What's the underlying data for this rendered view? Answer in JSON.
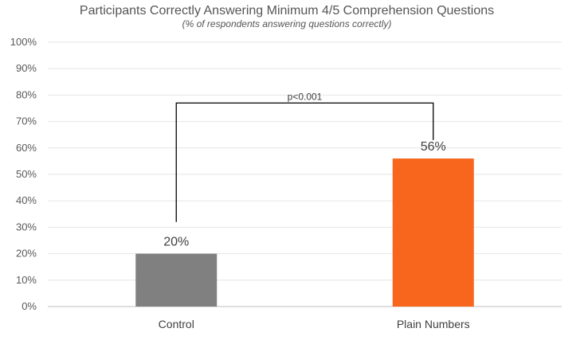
{
  "chart_data": {
    "type": "bar",
    "title": "Participants Correctly Answering Minimum 4/5 Comprehension Questions",
    "subtitle": "(% of respondents answering questions correctly)",
    "categories": [
      "Control",
      "Plain Numbers"
    ],
    "values": [
      20,
      56
    ],
    "data_labels": [
      "20%",
      "56%"
    ],
    "bar_colors": [
      "#808080",
      "#f7661c"
    ],
    "ylim": [
      0,
      100
    ],
    "yticks": [
      "0%",
      "10%",
      "20%",
      "30%",
      "40%",
      "50%",
      "60%",
      "70%",
      "80%",
      "90%",
      "100%"
    ],
    "ytick_values": [
      0,
      10,
      20,
      30,
      40,
      50,
      60,
      70,
      80,
      90,
      100
    ],
    "grid": true,
    "annotation": {
      "text": "p<0.001",
      "from_category": "Control",
      "to_category": "Plain Numbers"
    }
  }
}
